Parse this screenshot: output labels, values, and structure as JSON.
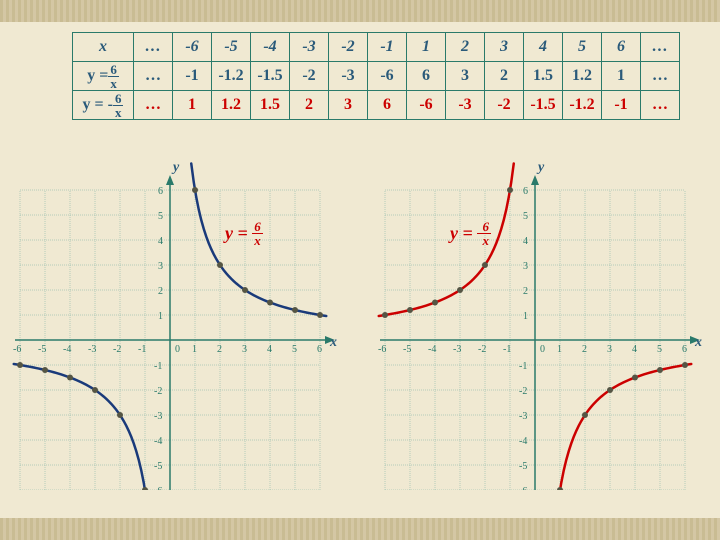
{
  "table": {
    "header": [
      "x",
      "…",
      "-6",
      "-5",
      "-4",
      "-3",
      "-2",
      "-1",
      "1",
      "2",
      "3",
      "4",
      "5",
      "6",
      "…"
    ],
    "row2_label": "y = 6/x",
    "row2": [
      "…",
      "-1",
      "-1.2",
      "-1.5",
      "-2",
      "-3",
      "-6",
      "6",
      "3",
      "2",
      "1.5",
      "1.2",
      "1",
      "…"
    ],
    "row3_label": "y = -6/x",
    "row3": [
      "…",
      "1",
      "1.2",
      "1.5",
      "2",
      "3",
      "6",
      "-6",
      "-3",
      "-2",
      "-1.5",
      "-1.2",
      "-1",
      "…"
    ]
  },
  "charts": {
    "grid_color": "#7ab0a4",
    "axis_color": "#2a7a6a",
    "bg_color": "#f0e9d2",
    "xlim": [
      -6,
      6
    ],
    "ylim": [
      -6,
      6
    ],
    "tick_step": 1,
    "point_color": "#555544",
    "left": {
      "label": "y = 6/x",
      "label_color": "#cc0000",
      "curve_color": "#1a3a7a",
      "curve_width": 2.5,
      "points": [
        [
          -6,
          -1
        ],
        [
          -5,
          -1.2
        ],
        [
          -4,
          -1.5
        ],
        [
          -3,
          -2
        ],
        [
          -2,
          -3
        ],
        [
          -1,
          -6
        ],
        [
          1,
          6
        ],
        [
          2,
          3
        ],
        [
          3,
          2
        ],
        [
          4,
          1.5
        ],
        [
          5,
          1.2
        ],
        [
          6,
          1
        ]
      ]
    },
    "right": {
      "label": "y = -6/x",
      "label_color": "#cc0000",
      "curve_color": "#cc0000",
      "curve_width": 2.5,
      "points": [
        [
          -6,
          1
        ],
        [
          -5,
          1.2
        ],
        [
          -4,
          1.5
        ],
        [
          -3,
          2
        ],
        [
          -2,
          3
        ],
        [
          -1,
          6
        ],
        [
          1,
          -6
        ],
        [
          2,
          -3
        ],
        [
          3,
          -2
        ],
        [
          4,
          -1.5
        ],
        [
          5,
          -1.2
        ],
        [
          6,
          -1
        ]
      ]
    }
  },
  "axis_labels": {
    "x": "x",
    "y": "y"
  }
}
